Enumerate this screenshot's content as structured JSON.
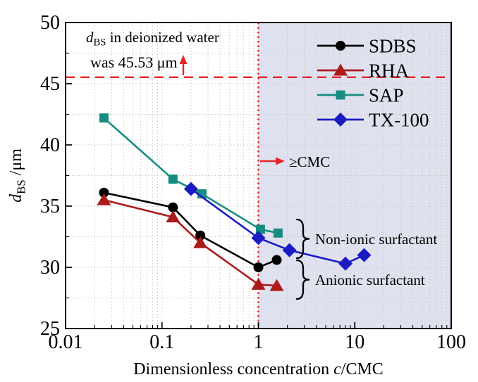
{
  "figure": {
    "background": "#ffffff",
    "accent_red": "#e62428",
    "shaded_region_color": "#dfe2ee",
    "grid_color": "#cfc3c3",
    "frame_color": "#000000"
  },
  "chart_data": {
    "type": "line",
    "x_scale": "log",
    "xlim": [
      0.01,
      100
    ],
    "ylim": [
      25,
      50
    ],
    "grid": true,
    "legend_position": "upper-right-inside",
    "xlabel_parts": [
      {
        "text": "Dimensionless concentration "
      },
      {
        "text": "c",
        "italic": true
      },
      {
        "text": "/CMC"
      }
    ],
    "ylabel_parts": [
      {
        "text": "d",
        "italic": true
      },
      {
        "text": "BS",
        "sub": true
      },
      {
        "text": " /μm"
      }
    ],
    "x_ticks": [
      {
        "v": 0.01,
        "label": "0.01"
      },
      {
        "v": 0.1,
        "label": "0.1"
      },
      {
        "v": 1,
        "label": "1"
      },
      {
        "v": 10,
        "label": "10"
      },
      {
        "v": 100,
        "label": "100"
      }
    ],
    "y_ticks": [
      {
        "v": 25,
        "label": "25"
      },
      {
        "v": 30,
        "label": "30"
      },
      {
        "v": 35,
        "label": "35"
      },
      {
        "v": 40,
        "label": "40"
      },
      {
        "v": 45,
        "label": "45"
      },
      {
        "v": 50,
        "label": "50"
      }
    ],
    "y_minor_step": 2.5,
    "series": [
      {
        "name": "SDBS",
        "color": "#000000",
        "marker": "circle",
        "x": [
          0.025,
          0.13,
          0.25,
          1.0,
          1.55
        ],
        "y": [
          36.1,
          34.9,
          32.6,
          30.0,
          30.6
        ]
      },
      {
        "name": "RHA",
        "color": "#ad1a1a",
        "marker": "triangle",
        "x": [
          0.025,
          0.13,
          0.25,
          1.0,
          1.55
        ],
        "y": [
          35.5,
          34.1,
          32.0,
          28.6,
          28.5
        ]
      },
      {
        "name": "SAP",
        "color": "#178d82",
        "marker": "square",
        "x": [
          0.025,
          0.13,
          0.26,
          1.05,
          1.6
        ],
        "y": [
          42.2,
          37.2,
          36.0,
          33.1,
          32.8
        ]
      },
      {
        "name": "TX-100",
        "color": "#1b1bc4",
        "marker": "diamond",
        "x": [
          0.2,
          1.0,
          2.1,
          8.0,
          12.5
        ],
        "y": [
          36.4,
          32.4,
          31.4,
          30.3,
          31.0
        ]
      }
    ],
    "reference_lines": {
      "deionized_water_value": 45.53,
      "cmc_vline_x": 1
    },
    "shaded_region": {
      "x_from": 1,
      "x_to": 100
    },
    "annotations": {
      "note_line1_parts": [
        {
          "text": "d",
          "italic": true
        },
        {
          "text": "BS",
          "sub": true
        },
        {
          "text": "  in deionized water"
        }
      ],
      "note_line2_parts": [
        {
          "text": "was 45.53 μm"
        }
      ],
      "cmc_label": "≥CMC",
      "groups": [
        {
          "label": "Non-ionic surfactant"
        },
        {
          "label": "Anionic surfactant"
        }
      ]
    }
  }
}
